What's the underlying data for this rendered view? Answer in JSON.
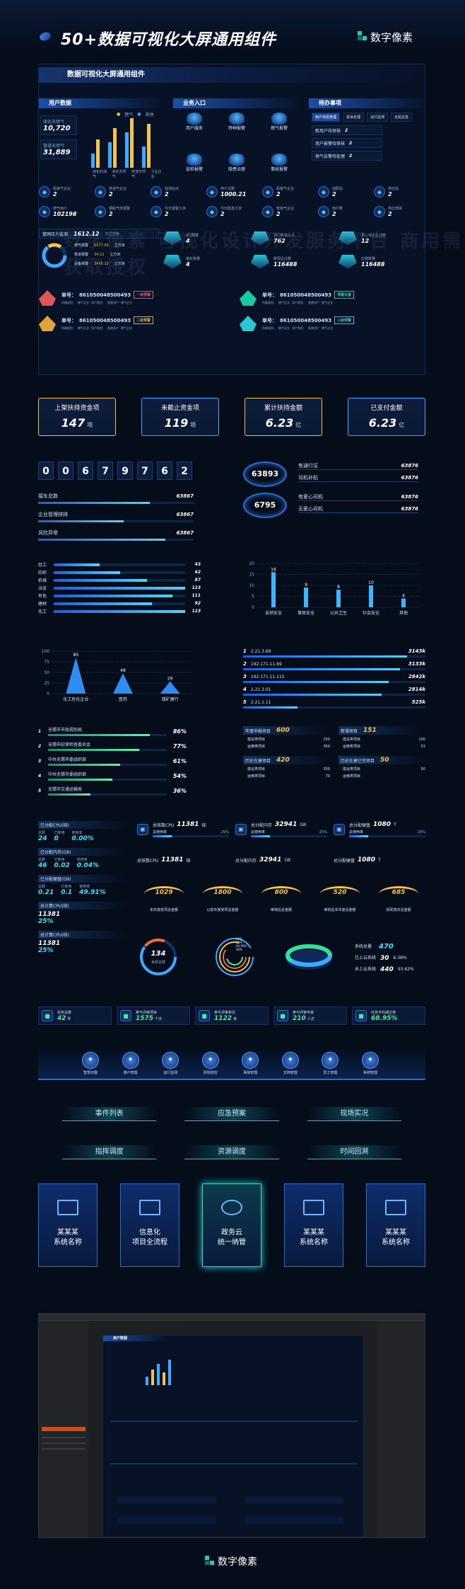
{
  "header": {
    "title": "50+数据可视化大屏通用组件",
    "brand": "数字像素"
  },
  "banner": {
    "title": "数据可视化大屏通用组件"
  },
  "user_panel": {
    "title": "用户数据",
    "stats": [
      {
        "label": "液化天然气",
        "value": "10,720"
      },
      {
        "label": "管道天然气",
        "value": "31,889"
      }
    ],
    "legend": [
      "燃气",
      "其他"
    ],
    "categories": [
      "液化石油气",
      "液化天然气",
      "管道天然气",
      "工业企业"
    ]
  },
  "business_panel": {
    "title": "业务入口",
    "items": [
      "用户服务",
      "特种报警",
      "燃气报警",
      "巡检报警",
      "隐患治理",
      "事故报警"
    ]
  },
  "todo_panel": {
    "title": "待办事项",
    "tabs": [
      "用户动态管理",
      "投诉处理",
      "运行监测",
      "全民应急"
    ],
    "items": [
      {
        "label": "新用户待审核",
        "value": "2"
      },
      {
        "label": "用户报警待审核",
        "value": "2"
      },
      {
        "label": "供气告警待处理",
        "value": "2"
      }
    ]
  },
  "kpi_row1": [
    {
      "label": "瓶装气企业",
      "value": "2"
    },
    {
      "label": "管道气企业",
      "value": "2"
    },
    {
      "label": "其他站点",
      "value": "2"
    },
    {
      "label": "用户总数",
      "value": "1000.21"
    },
    {
      "label": "瓶装气企业",
      "value": "2"
    },
    {
      "label": "储配站",
      "value": "2"
    },
    {
      "label": "供应站",
      "value": "2"
    }
  ],
  "kpi_row2": [
    {
      "label": "燃气用户",
      "value": "102198"
    },
    {
      "label": "钢瓶气体报警",
      "value": "2"
    },
    {
      "label": "今日报警工单",
      "value": "2"
    },
    {
      "label": "今日隐患工单",
      "value": "2"
    },
    {
      "label": "管道气企业",
      "value": "2"
    },
    {
      "label": "用户数",
      "value": "2"
    },
    {
      "label": "供应管网",
      "value": "2"
    }
  ],
  "gauge_panel": {
    "label": "管网压力监测",
    "value": "1612.12",
    "unit": "万立方米",
    "items": [
      {
        "label": "燃气报警",
        "value": "5577.00",
        "unit": "立方米"
      },
      {
        "label": "管道报警",
        "value": "34.12",
        "unit": "立方米"
      },
      {
        "label": "设备报警",
        "value": "3470.12",
        "unit": "立方米"
      }
    ]
  },
  "mid_stats": [
    {
      "label": "4口数量",
      "value": "4"
    },
    {
      "label": "办口新进入人",
      "value": "762"
    },
    {
      "label": "爱心寺庄企业数",
      "value": "12"
    },
    {
      "label": "接处数量",
      "value": "4"
    },
    {
      "label": "新招企业数",
      "value": "116488"
    },
    {
      "label": "应建数量",
      "value": "116488"
    }
  ],
  "orders": [
    {
      "label": "单号：",
      "code": "861050048500493",
      "badge": "一级预警",
      "color": "#e05656",
      "sub": [
        "所属类别：",
        "燃气企业",
        "用户类型：",
        "瓶装用户",
        "燃气企业"
      ]
    },
    {
      "label": "单号：",
      "code": "861050048500493",
      "badge": "预警处置",
      "color": "#19c9a5",
      "sub": [
        "所属类别：",
        "燃气企业",
        "用户类型：",
        "瓶装用户",
        "燃气企业"
      ]
    },
    {
      "label": "单号：",
      "code": "861050048500493",
      "badge": "二级预警",
      "color": "#e0a43a",
      "sub": [
        "所属类别：",
        "燃气企业",
        "用户类型：",
        "瓶装用户",
        "燃气企业"
      ]
    },
    {
      "label": "单号：",
      "code": "861050048500493",
      "badge": "三级预警",
      "color": "#29c6d6",
      "sub": [
        "所属类别：",
        "燃气企业",
        "用户类型：",
        "瓶装用户",
        "燃气企业"
      ]
    }
  ],
  "money_cards": [
    {
      "title": "上架扶持资金项",
      "value": "147",
      "unit": "项",
      "color": "#f3c34c"
    },
    {
      "title": "未截止资金项",
      "value": "119",
      "unit": "项",
      "color": "#3fa8ff"
    },
    {
      "title": "累计扶持金额",
      "value": "6.23",
      "unit": "亿",
      "color": "#f3c34c"
    },
    {
      "title": "已支付金额",
      "value": "6.23",
      "unit": "亿",
      "color": "#3fa8ff"
    }
  ],
  "counter": {
    "digits": [
      "0",
      "0",
      "6",
      "7",
      "9",
      "7",
      "6",
      "2"
    ],
    "rows": [
      {
        "label": "接车总数",
        "value": "63867",
        "pct": 0.72
      },
      {
        "label": "企业管理排排",
        "value": "63867",
        "pct": 0.55
      },
      {
        "label": "风险异常",
        "value": "63867",
        "pct": 0.82
      }
    ]
  },
  "rings": [
    {
      "value": "63893",
      "items": [
        {
          "label": "有通行证",
          "value": "63876"
        },
        {
          "label": "司机补贴",
          "value": "63876"
        }
      ]
    },
    {
      "value": "6795",
      "items": [
        {
          "label": "有爱心司机",
          "value": "63876"
        },
        {
          "label": "无爱心司机",
          "value": "63876"
        }
      ]
    }
  ],
  "hbars": {
    "items": [
      {
        "label": "轻工",
        "value": "43"
      },
      {
        "label": "纺织",
        "value": "62"
      },
      {
        "label": "机械",
        "value": "87"
      },
      {
        "label": "冶金",
        "value": "123"
      },
      {
        "label": "有色",
        "value": "111"
      },
      {
        "label": "建材",
        "value": "92"
      },
      {
        "label": "化工",
        "value": "123"
      }
    ]
  },
  "chart_data": [
    {
      "type": "bar",
      "categories": [
        "自然安全",
        "事故安全",
        "公共卫生",
        "社会安全",
        "其他"
      ],
      "values": [
        16,
        9,
        8,
        10,
        4
      ],
      "ylim": [
        0,
        20
      ],
      "yticks": [
        0,
        5,
        10,
        15,
        20
      ]
    },
    {
      "type": "bar",
      "categories": [
        "化工危化企业",
        "医药",
        "煤矿建行"
      ],
      "values": [
        85,
        48,
        29
      ],
      "ylim": [
        0,
        100
      ],
      "yticks": [
        0,
        25,
        50,
        75,
        100
      ]
    }
  ],
  "ip_list": [
    {
      "rank": "1",
      "ip": "2.21.3.69",
      "value": "3143k",
      "pct": 0.9
    },
    {
      "rank": "2",
      "ip": "192.171.11.69",
      "value": "3133k",
      "pct": 0.86
    },
    {
      "rank": "3",
      "ip": "192.171.11.115",
      "value": "2842k",
      "pct": 0.8
    },
    {
      "rank": "4",
      "ip": "2.21.3.01",
      "value": "2814k",
      "pct": 0.76
    },
    {
      "rank": "5",
      "ip": "2.21.1.11",
      "value": "525k",
      "pct": 0.3
    }
  ],
  "progress_list": [
    {
      "label": "无锡市市政规划局",
      "value": "86%",
      "pct": 0.86
    },
    {
      "label": "无锡市纪律检查委员会",
      "value": "77%",
      "pct": 0.77
    },
    {
      "label": "中共无锡市委组织部",
      "value": "61%",
      "pct": 0.61
    },
    {
      "label": "中共无锡市委组织部",
      "value": "54%",
      "pct": 0.54
    },
    {
      "label": "无锡市交通运输局",
      "value": "36%",
      "pct": 0.36
    }
  ],
  "project_cards": [
    {
      "title": "年度申报项目",
      "value": "600",
      "rows": [
        {
          "label": "建设类项目",
          "value": "250"
        },
        {
          "label": "运维类项目",
          "value": "350"
        }
      ]
    },
    {
      "title": "新增项目",
      "value": "151",
      "rows": [
        {
          "label": "建设类项目",
          "value": "100"
        },
        {
          "label": "运维类项目",
          "value": "51"
        }
      ]
    },
    {
      "title": "历史在建项目",
      "value": "420",
      "rows": [
        {
          "label": "建设类项目",
          "value": "350"
        },
        {
          "label": "运维类项目",
          "value": "70"
        }
      ]
    },
    {
      "title": "历史在建已完项目",
      "value": "50",
      "rows": [
        {
          "label": "建设类项目",
          "value": "50"
        },
        {
          "label": "运维类项目",
          "value": ""
        }
      ]
    }
  ],
  "resource_left": [
    {
      "title": "已分配CPU(核)",
      "items": [
        {
          "label": "总数",
          "value": "24"
        },
        {
          "label": "已使用",
          "value": "0"
        },
        {
          "label": "使用率",
          "value": "0.00%"
        }
      ]
    },
    {
      "title": "已分配内存(GB)",
      "items": [
        {
          "label": "总数",
          "value": "46"
        },
        {
          "label": "已使用",
          "value": "0.02"
        },
        {
          "label": "使用率",
          "value": "0.04%"
        }
      ]
    },
    {
      "title": "已分配硬盘(GB)",
      "items": [
        {
          "label": "总数",
          "value": "0.21"
        },
        {
          "label": "已使用",
          "value": "0.1"
        },
        {
          "label": "使用率",
          "value": "49.91%"
        }
      ]
    },
    {
      "title": "总计算CPU(核)",
      "items": [
        {
          "label": "11381",
          "value": "25%"
        }
      ]
    },
    {
      "title": "总计算CPU(核)",
      "items": [
        {
          "label": "11381",
          "value": "25%"
        }
      ]
    }
  ],
  "resource_top": [
    {
      "label": "总核数CPU",
      "value": "11381",
      "unit": "核",
      "sub": "总使用率",
      "pct": "25%"
    },
    {
      "label": "总分配内存",
      "value": "32941",
      "unit": "GB",
      "sub": "总使用率",
      "pct": "25%"
    },
    {
      "label": "总分配硬盘",
      "value": "1080",
      "unit": "T",
      "sub": "总使用率",
      "pct": "25%"
    }
  ],
  "resource_top2": [
    {
      "label": "总核数CPU",
      "value": "11381",
      "unit": "核"
    },
    {
      "label": "总分配内存",
      "value": "32941",
      "unit": "GB"
    },
    {
      "label": "总分配硬盘",
      "value": "1080",
      "unit": "T"
    }
  ],
  "arc_stats": [
    {
      "value": "1029",
      "label": "本年度受项总金额"
    },
    {
      "value": "1800",
      "label": "以前年度受项总金额"
    },
    {
      "value": "800",
      "label": "审核后总金额"
    },
    {
      "value": "520",
      "label": "审核后本年度总金额"
    },
    {
      "value": "685",
      "label": "财政落实总金额"
    }
  ],
  "donut": {
    "value": "134",
    "label": "系统总数"
  },
  "ring2": {
    "items": [
      "96%",
      "81%",
      "60.99%",
      "46%"
    ]
  },
  "sys_stats": {
    "title": "系统总量",
    "total": "470",
    "items": [
      {
        "label": "已上云系统",
        "value": "30",
        "pct": "6.38%"
      },
      {
        "label": "未上云系统",
        "value": "440",
        "pct": "93.62%"
      }
    ]
  },
  "bottom_stats": [
    {
      "label": "任务总数",
      "value": "42",
      "unit": "件"
    },
    {
      "label": "参与评审项目",
      "value": "1575",
      "unit": "个次"
    },
    {
      "label": "参与评审单位",
      "value": "1122",
      "unit": "家"
    },
    {
      "label": "参与评审专家",
      "value": "210",
      "unit": "人次"
    },
    {
      "label": "任务平均通过率",
      "value": "68.95%",
      "unit": ""
    }
  ],
  "nav_items": [
    "智慧出警",
    "用户管理",
    "运行监测",
    "风险防控",
    "事故管理",
    "文档管理",
    "员工管理",
    "系统管理"
  ],
  "buttons": [
    "事件列表",
    "应急预案",
    "现场实况",
    "指挥调度",
    "资源调度",
    "时间回溯"
  ],
  "sys_cards": [
    "某某某\n系统名称",
    "信息化\n项目全流程",
    "政务云\n统一纳管",
    "某某某\n系统名称",
    "某某某\n系统名称"
  ],
  "watermark": "数字像素  可视化设计开发服务平台  商用需获取授权",
  "footer": {
    "brand": "数字像素"
  }
}
